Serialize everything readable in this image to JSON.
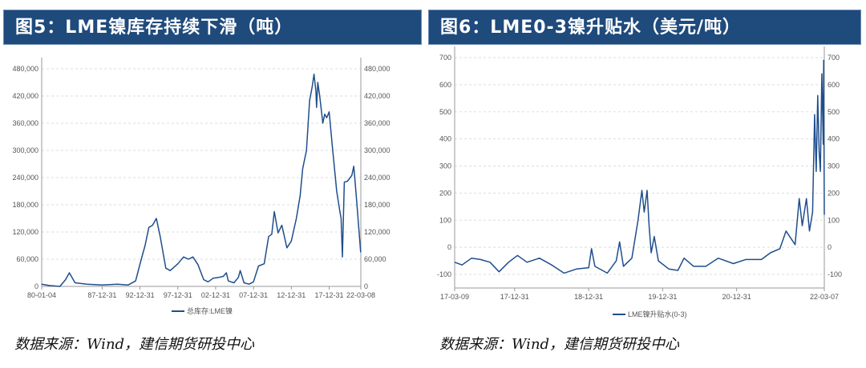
{
  "figures": [
    {
      "header": "图5：LME镍库存持续下滑（吨）",
      "source": "数据来源：Wind，建信期货研投中心"
    },
    {
      "header": "图6：LME0-3镍升贴水（美元/吨）",
      "source": "数据来源：Wind，建信期货研投中心"
    }
  ],
  "chart_data": [
    {
      "type": "line",
      "title": "图5：LME镍库存持续下滑（吨）",
      "ylim": [
        0,
        480000
      ],
      "yticks": [
        "0",
        "60,000",
        "120,000",
        "180,000",
        "240,000",
        "300,000",
        "360,000",
        "420,000",
        "480,000"
      ],
      "ytick_values": [
        0,
        60000,
        120000,
        180000,
        240000,
        300000,
        360000,
        420000,
        480000
      ],
      "xticks": [
        "80-01-04",
        "87-12-31",
        "92-12-31",
        "97-12-31",
        "02-12-31",
        "07-12-31",
        "12-12-31",
        "17-12-31",
        "22-03-08"
      ],
      "xtick_dates": [
        "1980-01-04",
        "1987-12-31",
        "1992-12-31",
        "1997-12-31",
        "2002-12-31",
        "2007-12-31",
        "2012-12-31",
        "2017-12-31",
        "2022-03-08"
      ],
      "grid": true,
      "dual_axis_mirrored": true,
      "legend_position": "bottom",
      "color": "#1f4e8c",
      "series": [
        {
          "name": "总库存:LME镍",
          "points": [
            [
              "1980-01",
              5000
            ],
            [
              "1981-01",
              2000
            ],
            [
              "1982-06",
              0
            ],
            [
              "1983-03",
              15000
            ],
            [
              "1983-09",
              30000
            ],
            [
              "1984-06",
              8000
            ],
            [
              "1986-01",
              5000
            ],
            [
              "1988-01",
              3000
            ],
            [
              "1990-01",
              5000
            ],
            [
              "1991-06",
              3000
            ],
            [
              "1992-06",
              12000
            ],
            [
              "1993-03",
              60000
            ],
            [
              "1993-09",
              90000
            ],
            [
              "1994-03",
              130000
            ],
            [
              "1994-09",
              135000
            ],
            [
              "1995-03",
              150000
            ],
            [
              "1995-09",
              110000
            ],
            [
              "1996-06",
              40000
            ],
            [
              "1997-01",
              35000
            ],
            [
              "1998-01",
              50000
            ],
            [
              "1998-10",
              65000
            ],
            [
              "1999-06",
              60000
            ],
            [
              "2000-01",
              65000
            ],
            [
              "2000-09",
              48000
            ],
            [
              "2001-06",
              15000
            ],
            [
              "2002-01",
              10000
            ],
            [
              "2002-09",
              18000
            ],
            [
              "2003-06",
              20000
            ],
            [
              "2004-01",
              22000
            ],
            [
              "2004-06",
              30000
            ],
            [
              "2004-09",
              12000
            ],
            [
              "2005-06",
              8000
            ],
            [
              "2006-01",
              20000
            ],
            [
              "2006-04",
              35000
            ],
            [
              "2006-10",
              8000
            ],
            [
              "2007-06",
              5000
            ],
            [
              "2008-01",
              10000
            ],
            [
              "2008-09",
              45000
            ],
            [
              "2009-06",
              50000
            ],
            [
              "2010-01",
              110000
            ],
            [
              "2010-06",
              115000
            ],
            [
              "2010-10",
              165000
            ],
            [
              "2011-04",
              118000
            ],
            [
              "2011-10",
              135000
            ],
            [
              "2012-06",
              85000
            ],
            [
              "2013-01",
              100000
            ],
            [
              "2013-09",
              150000
            ],
            [
              "2014-03",
              200000
            ],
            [
              "2014-07",
              260000
            ],
            [
              "2015-01",
              300000
            ],
            [
              "2015-06",
              410000
            ],
            [
              "2015-10",
              440000
            ],
            [
              "2016-01",
              468000
            ],
            [
              "2016-04",
              430000
            ],
            [
              "2016-05",
              395000
            ],
            [
              "2016-07",
              450000
            ],
            [
              "2016-10",
              420000
            ],
            [
              "2017-03",
              360000
            ],
            [
              "2017-06",
              380000
            ],
            [
              "2017-09",
              372000
            ],
            [
              "2018-01",
              385000
            ],
            [
              "2018-06",
              310000
            ],
            [
              "2019-01",
              210000
            ],
            [
              "2019-06",
              165000
            ],
            [
              "2019-08",
              150000
            ],
            [
              "2019-10",
              65000
            ],
            [
              "2020-01",
              230000
            ],
            [
              "2020-06",
              232000
            ],
            [
              "2021-01",
              245000
            ],
            [
              "2021-04",
              265000
            ],
            [
              "2021-08",
              200000
            ],
            [
              "2022-03",
              75000
            ]
          ]
        }
      ]
    },
    {
      "type": "line",
      "title": "图6：LME0-3镍升贴水（美元/吨）",
      "ylim": [
        -150,
        700
      ],
      "yticks": [
        "-100",
        "0",
        "100",
        "200",
        "300",
        "400",
        "500",
        "600",
        "700"
      ],
      "ytick_values": [
        -100,
        0,
        100,
        200,
        300,
        400,
        500,
        600,
        700
      ],
      "xticks": [
        "17-03-09",
        "17-12-31",
        "18-12-31",
        "19-12-31",
        "20-12-31",
        "22-03-07"
      ],
      "xtick_dates": [
        "2017-03-09",
        "2017-12-31",
        "2018-12-31",
        "2019-12-31",
        "2020-12-31",
        "2022-03-07"
      ],
      "grid": true,
      "dual_axis_mirrored": true,
      "legend_position": "bottom",
      "color": "#1f4e8c",
      "series": [
        {
          "name": "LME镍升贴水(0-3)",
          "points": [
            [
              "2017-03-09",
              -55
            ],
            [
              "2017-04-15",
              -65
            ],
            [
              "2017-06-01",
              -40
            ],
            [
              "2017-07-15",
              -45
            ],
            [
              "2017-09-01",
              -55
            ],
            [
              "2017-10-15",
              -90
            ],
            [
              "2017-12-01",
              -55
            ],
            [
              "2018-01-15",
              -30
            ],
            [
              "2018-03-01",
              -55
            ],
            [
              "2018-05-01",
              -40
            ],
            [
              "2018-07-01",
              -65
            ],
            [
              "2018-09-01",
              -95
            ],
            [
              "2018-11-01",
              -80
            ],
            [
              "2019-01-01",
              -75
            ],
            [
              "2019-01-15",
              -5
            ],
            [
              "2019-02-01",
              -70
            ],
            [
              "2019-04-01",
              -95
            ],
            [
              "2019-05-15",
              -50
            ],
            [
              "2019-06-01",
              20
            ],
            [
              "2019-06-20",
              -70
            ],
            [
              "2019-08-01",
              -40
            ],
            [
              "2019-09-01",
              100
            ],
            [
              "2019-09-20",
              210
            ],
            [
              "2019-10-01",
              130
            ],
            [
              "2019-10-15",
              210
            ],
            [
              "2019-10-25",
              80
            ],
            [
              "2019-11-05",
              -20
            ],
            [
              "2019-11-20",
              40
            ],
            [
              "2019-12-10",
              -50
            ],
            [
              "2020-02-01",
              -80
            ],
            [
              "2020-03-15",
              -85
            ],
            [
              "2020-04-15",
              -40
            ],
            [
              "2020-06-01",
              -70
            ],
            [
              "2020-08-01",
              -70
            ],
            [
              "2020-10-01",
              -40
            ],
            [
              "2020-12-15",
              -60
            ],
            [
              "2021-02-15",
              -45
            ],
            [
              "2021-05-01",
              -45
            ],
            [
              "2021-06-15",
              -20
            ],
            [
              "2021-08-01",
              -5
            ],
            [
              "2021-09-01",
              60
            ],
            [
              "2021-10-15",
              10
            ],
            [
              "2021-11-05",
              180
            ],
            [
              "2021-11-20",
              80
            ],
            [
              "2021-12-10",
              180
            ],
            [
              "2021-12-25",
              60
            ],
            [
              "2022-01-10",
              130
            ],
            [
              "2022-01-20",
              490
            ],
            [
              "2022-01-28",
              280
            ],
            [
              "2022-02-05",
              560
            ],
            [
              "2022-02-12",
              350
            ],
            [
              "2022-02-18",
              280
            ],
            [
              "2022-02-25",
              640
            ],
            [
              "2022-03-02",
              380
            ],
            [
              "2022-03-04",
              690
            ],
            [
              "2022-03-07",
              120
            ]
          ]
        }
      ]
    }
  ]
}
